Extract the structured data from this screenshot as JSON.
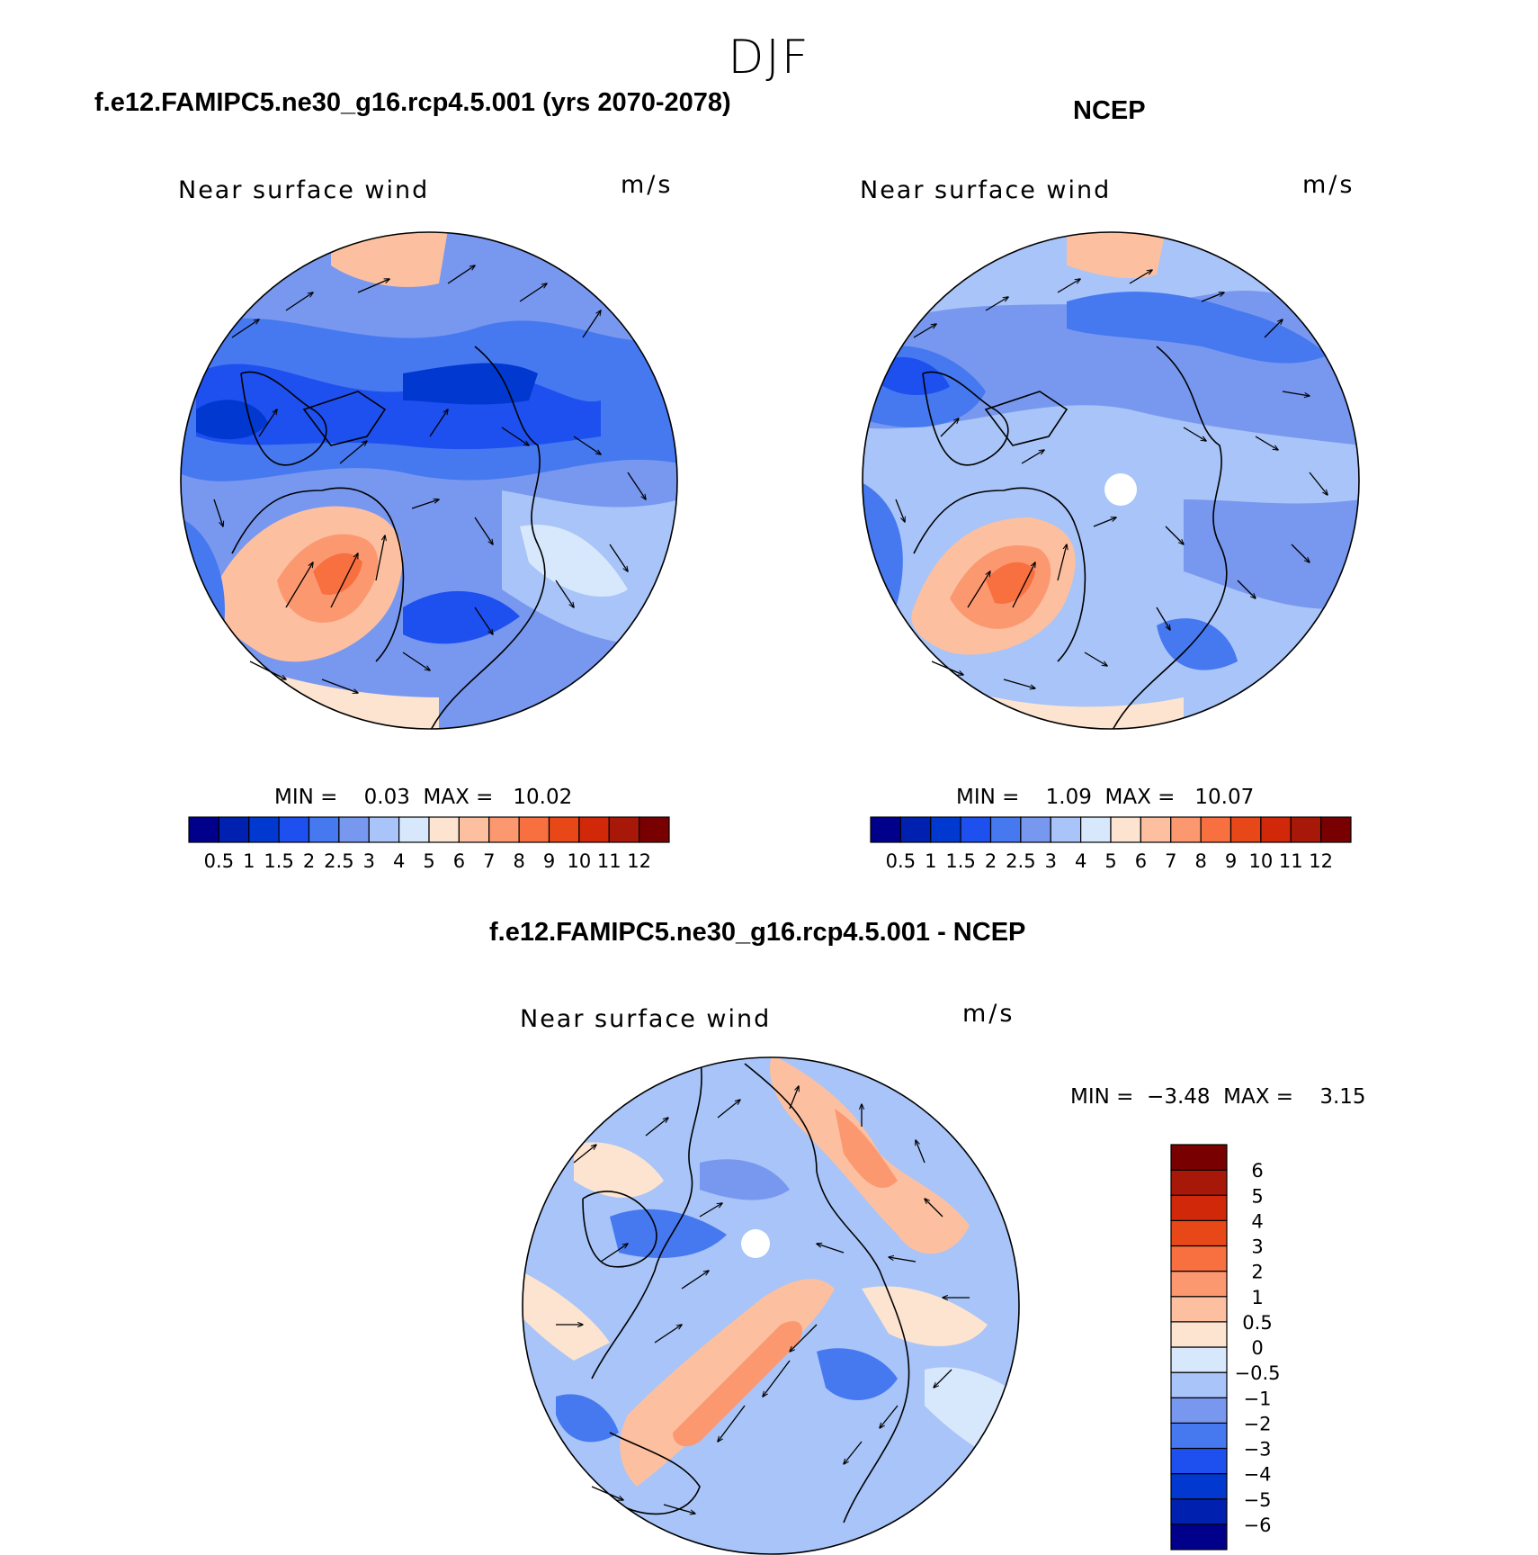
{
  "figure": {
    "season_title": "DJF"
  },
  "panels": [
    {
      "title": "f.e12.FAMIPC5.ne30_g16.rcp4.5.001 (yrs 2070-2078)",
      "variable": "Near surface wind",
      "units": "m/s",
      "min_label": "MIN =",
      "min_value": "0.03",
      "max_label": "MAX =",
      "max_value": "10.02"
    },
    {
      "title": "NCEP",
      "variable": "Near surface wind",
      "units": "m/s",
      "min_label": "MIN =",
      "min_value": "1.09",
      "max_label": "MAX =",
      "max_value": "10.07"
    },
    {
      "title": "f.e12.FAMIPC5.ne30_g16.rcp4.5.001 - NCEP",
      "variable": "Near surface wind",
      "units": "m/s",
      "min_label": "MIN =",
      "min_value": "−3.48",
      "max_label": "MAX =",
      "max_value": "3.15"
    }
  ],
  "colorbars": {
    "speed": {
      "colors": [
        "#00008b",
        "#0020b0",
        "#0038d0",
        "#1e50f0",
        "#4678f0",
        "#7898f0",
        "#a8c4f8",
        "#d8e8fc",
        "#fce4d0",
        "#fcc0a0",
        "#fc9870",
        "#f87040",
        "#e84818",
        "#d02808",
        "#a81808",
        "#780000"
      ],
      "labels": [
        "0.5",
        "1",
        "1.5",
        "2",
        "2.5",
        "3",
        "4",
        "5",
        "6",
        "7",
        "8",
        "9",
        "10",
        "11",
        "12"
      ]
    },
    "difference": {
      "colors": [
        "#00008b",
        "#0020b0",
        "#0038d0",
        "#1e50f0",
        "#4678f0",
        "#7898f0",
        "#a8c4f8",
        "#d8e8fc",
        "#fce4d0",
        "#fcc0a0",
        "#fc9870",
        "#f87040",
        "#e84818",
        "#d02808",
        "#a81808",
        "#780000"
      ],
      "labels": [
        "−6",
        "−5",
        "−4",
        "−3",
        "−2",
        "−1",
        "−0.5",
        "0",
        "0.5",
        "1",
        "2",
        "3",
        "4",
        "5",
        "6"
      ]
    }
  },
  "map_style": {
    "projection": "north polar stereographic",
    "field": "wind speed contours with wind vectors and coastlines"
  }
}
